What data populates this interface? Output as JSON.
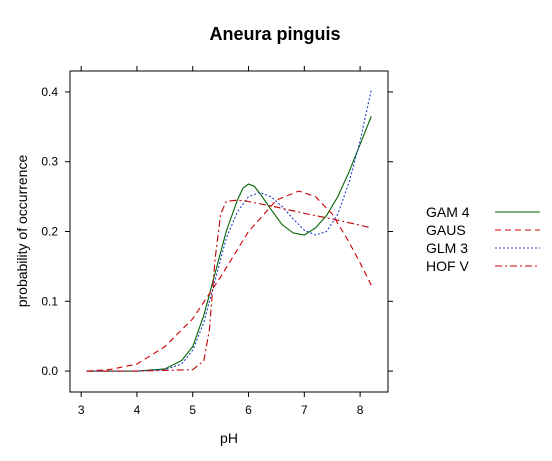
{
  "chart_data": {
    "type": "line",
    "title": "Aneura pinguis",
    "xlabel": "pH",
    "ylabel": "probability of occurrence",
    "xlim": [
      2.8,
      8.5
    ],
    "ylim": [
      -0.03,
      0.43
    ],
    "x_ticks": [
      3,
      4,
      5,
      6,
      7,
      8
    ],
    "y_ticks": [
      0.0,
      0.1,
      0.2,
      0.3,
      0.4
    ],
    "x_tick_labels": [
      "3",
      "4",
      "5",
      "6",
      "7",
      "8"
    ],
    "y_tick_labels": [
      "0.0",
      "0.1",
      "0.2",
      "0.3",
      "0.4"
    ],
    "legend_position": "right",
    "grid": false,
    "series": [
      {
        "name": "GAM 4",
        "color": "#006400",
        "dash": "solid",
        "x": [
          3.1,
          4.0,
          4.5,
          4.8,
          5.0,
          5.2,
          5.4,
          5.6,
          5.8,
          5.9,
          6.0,
          6.1,
          6.2,
          6.4,
          6.6,
          6.8,
          7.0,
          7.2,
          7.4,
          7.6,
          7.8,
          8.0,
          8.2
        ],
        "y": [
          0.0,
          0.0,
          0.003,
          0.015,
          0.035,
          0.08,
          0.14,
          0.2,
          0.245,
          0.262,
          0.268,
          0.265,
          0.255,
          0.232,
          0.21,
          0.198,
          0.195,
          0.205,
          0.223,
          0.25,
          0.285,
          0.325,
          0.365
        ]
      },
      {
        "name": "GAUS",
        "color": "#d00000",
        "dash": "dashed",
        "x": [
          3.1,
          3.5,
          4.0,
          4.5,
          5.0,
          5.5,
          6.0,
          6.5,
          6.9,
          7.2,
          7.5,
          7.8,
          8.0,
          8.2
        ],
        "y": [
          0.0,
          0.002,
          0.01,
          0.035,
          0.075,
          0.135,
          0.2,
          0.245,
          0.258,
          0.25,
          0.225,
          0.185,
          0.155,
          0.123
        ]
      },
      {
        "name": "GLM 3",
        "color": "#2040d0",
        "dash": "dotted",
        "x": [
          3.1,
          4.0,
          4.5,
          4.8,
          5.0,
          5.2,
          5.4,
          5.6,
          5.8,
          6.0,
          6.2,
          6.4,
          6.6,
          6.8,
          7.0,
          7.2,
          7.4,
          7.6,
          7.8,
          8.0,
          8.2
        ],
        "y": [
          0.0,
          0.0,
          0.002,
          0.01,
          0.03,
          0.07,
          0.13,
          0.19,
          0.228,
          0.25,
          0.256,
          0.25,
          0.236,
          0.218,
          0.202,
          0.195,
          0.2,
          0.225,
          0.27,
          0.33,
          0.403
        ]
      },
      {
        "name": "HOF V",
        "color": "#c00000",
        "dash": "dashdot",
        "x": [
          3.1,
          4.0,
          5.0,
          5.2,
          5.3,
          5.4,
          5.5,
          5.6,
          5.8,
          6.0,
          6.5,
          7.0,
          7.5,
          8.0,
          8.2
        ],
        "y": [
          0.0,
          0.0,
          0.002,
          0.015,
          0.06,
          0.16,
          0.225,
          0.243,
          0.245,
          0.243,
          0.235,
          0.226,
          0.218,
          0.209,
          0.205
        ]
      }
    ]
  }
}
